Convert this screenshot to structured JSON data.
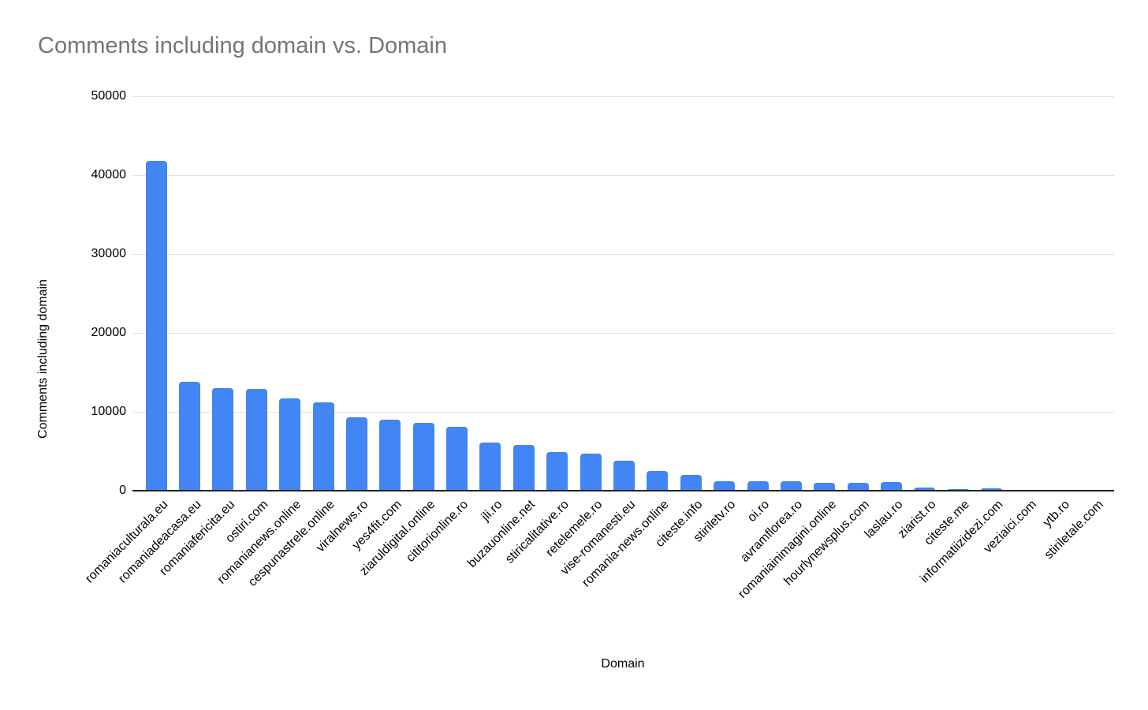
{
  "chart_data": {
    "type": "bar",
    "title": "Comments including domain vs. Domain",
    "xlabel": "Domain",
    "ylabel": "Comments including domain",
    "categories": [
      "romaniaculturala.eu",
      "romaniadeacasa.eu",
      "romaniafericita.eu",
      "ostiri.com",
      "romanianews.online",
      "cespunastrele.online",
      "viralnews.ro",
      "yes4fit.com",
      "ziaruldigital.online",
      "cititorionline.ro",
      "jli.ro",
      "buzauonline.net",
      "stiricalitative.ro",
      "retelemele.ro",
      "vise-romanesti.eu",
      "romania-news.online",
      "citeste.info",
      "stiriletv.ro",
      "oi.ro",
      "avramflorea.ro",
      "romaniainimagini.online",
      "hourlynewsplus.com",
      "laslau.ro",
      "ziarist.ro",
      "citeste.me",
      "informatiizidezi.com",
      "veziaici.com",
      "ytb.ro",
      "stiriletale.com"
    ],
    "values": [
      41800,
      13800,
      13000,
      12900,
      11700,
      11200,
      9300,
      9000,
      8600,
      8100,
      6100,
      5800,
      4900,
      4700,
      3800,
      2500,
      2000,
      1200,
      1250,
      1200,
      1000,
      1050,
      1100,
      400,
      250,
      300,
      150,
      120,
      100
    ],
    "yticks": [
      0,
      10000,
      20000,
      30000,
      40000,
      50000
    ],
    "ylim": [
      0,
      50000
    ],
    "grid": true,
    "legend": "none",
    "colors": {
      "bar": "#4285f4",
      "title": "#757575",
      "axis_text": "#000000",
      "gridline": "#e3e3e3",
      "baseline": "#212121",
      "background": "#ffffff"
    }
  }
}
